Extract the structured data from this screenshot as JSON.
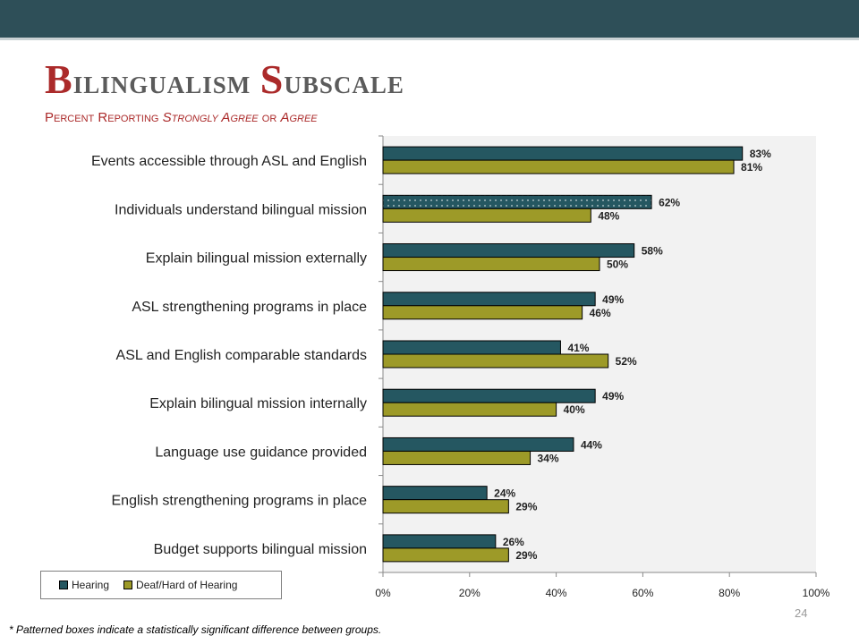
{
  "slide": {
    "title": "Bilingualism Subscale",
    "subtitle_plain": "Percent Reporting ",
    "subtitle_italic": "Strongly Agree",
    "subtitle_mid": " or ",
    "subtitle_italic2": "Agree",
    "footnote": "* Patterned boxes indicate a statistically significant difference between groups.",
    "page_number": "24"
  },
  "colors": {
    "top_bar": "#2e4f58",
    "title": "#5b5b5b",
    "title_accent": "#ab2a2a",
    "hearing": "#255761",
    "deaf": "#9d9a28",
    "plot_bg": "#f2f2f2"
  },
  "chart_data": {
    "type": "bar",
    "orientation": "horizontal",
    "categories": [
      "Events accessible through ASL and English",
      "Individuals understand bilingual mission",
      "Explain bilingual mission externally",
      "ASL strengthening programs in place",
      "ASL and English comparable standards",
      "Explain bilingual mission internally",
      "Language use guidance provided",
      "English strengthening programs in place",
      "Budget supports bilingual mission"
    ],
    "series": [
      {
        "name": "Hearing",
        "values": [
          83,
          62,
          58,
          49,
          41,
          49,
          44,
          24,
          26
        ],
        "patterned": [
          false,
          true,
          false,
          false,
          false,
          false,
          false,
          false,
          false
        ]
      },
      {
        "name": "Deaf/Hard of Hearing",
        "values": [
          81,
          48,
          50,
          46,
          52,
          40,
          34,
          29,
          29
        ],
        "patterned": [
          false,
          false,
          false,
          false,
          false,
          false,
          false,
          false,
          false
        ]
      }
    ],
    "data_labels": [
      [
        "83%",
        "62%",
        "58%",
        "49%",
        "41%",
        "49%",
        "44%",
        "24%",
        "26%"
      ],
      [
        "81%",
        "48%",
        "50%",
        "46%",
        "52%",
        "40%",
        "34%",
        "29%",
        "29%"
      ]
    ],
    "xlim": [
      0,
      100
    ],
    "xticks": [
      0,
      20,
      40,
      60,
      80,
      100
    ],
    "xtick_labels": [
      "0%",
      "20%",
      "40%",
      "60%",
      "80%",
      "100%"
    ],
    "legend_position": "bottom-left",
    "grid": false
  }
}
